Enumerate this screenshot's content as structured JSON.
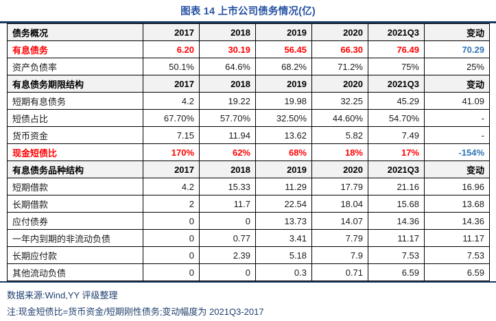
{
  "title": "图表 14 上市公司债务情况(亿)",
  "colors": {
    "title_blue": "#2853A3",
    "highlight_red": "#FF0000",
    "change_blue": "#2E75B6",
    "footer_navy": "#1F3F6E",
    "rule_navy": "#17375E",
    "section_bg": "#F2F2F2"
  },
  "table": {
    "sections": [
      {
        "header": {
          "label": "债务概况",
          "columns": [
            "2017",
            "2018",
            "2019",
            "2020",
            "2021Q3",
            "变动"
          ]
        },
        "rows": [
          {
            "label": "有息债务",
            "values": [
              "6.20",
              "30.19",
              "56.45",
              "66.30",
              "76.49",
              "70.29"
            ],
            "style": "highlight"
          },
          {
            "label": "资产负债率",
            "values": [
              "50.1%",
              "64.6%",
              "68.2%",
              "71.2%",
              "75%",
              "25%"
            ],
            "style": "normal"
          }
        ]
      },
      {
        "header": {
          "label": "有息债务期限结构",
          "columns": [
            "2017",
            "2018",
            "2019",
            "2020",
            "2021Q3",
            "变动"
          ]
        },
        "rows": [
          {
            "label": "短期有息债务",
            "values": [
              "4.2",
              "19.22",
              "19.98",
              "32.25",
              "45.29",
              "41.09"
            ],
            "style": "normal"
          },
          {
            "label": "短债占比",
            "values": [
              "67.70%",
              "57.70%",
              "32.50%",
              "44.60%",
              "54.70%",
              "-"
            ],
            "style": "normal"
          },
          {
            "label": "货币资金",
            "values": [
              "7.15",
              "11.94",
              "13.62",
              "5.82",
              "7.49",
              "-"
            ],
            "style": "normal"
          },
          {
            "label": "现金短债比",
            "values": [
              "170%",
              "62%",
              "68%",
              "18%",
              "17%",
              "-154%"
            ],
            "style": "highlight"
          }
        ]
      },
      {
        "header": {
          "label": "有息债务品种结构",
          "columns": [
            "2017",
            "2018",
            "2019",
            "2020",
            "2021Q3",
            "变动"
          ]
        },
        "rows": [
          {
            "label": "短期借款",
            "values": [
              "4.2",
              "15.33",
              "11.29",
              "17.79",
              "21.16",
              "16.96"
            ],
            "style": "normal"
          },
          {
            "label": "长期借款",
            "values": [
              "2",
              "11.7",
              "22.54",
              "18.04",
              "15.68",
              "13.68"
            ],
            "style": "normal"
          },
          {
            "label": "应付债券",
            "values": [
              "0",
              "0",
              "13.73",
              "14.07",
              "14.36",
              "14.36"
            ],
            "style": "normal"
          },
          {
            "label": "一年内到期的非流动负债",
            "values": [
              "0",
              "0.77",
              "3.41",
              "7.79",
              "11.17",
              "11.17"
            ],
            "style": "normal"
          },
          {
            "label": "长期应付款",
            "values": [
              "0",
              "2.39",
              "5.18",
              "7.9",
              "7.53",
              "7.53"
            ],
            "style": "normal"
          },
          {
            "label": "其他流动负债",
            "values": [
              "0",
              "0",
              "0.3",
              "0.71",
              "6.59",
              "6.59"
            ],
            "style": "normal"
          }
        ]
      }
    ]
  },
  "footer": {
    "source": "数据来源:Wind,YY 评级整理",
    "note": "注:现金短债比=货币资金/短期刚性债务;变动幅度为 2021Q3-2017"
  }
}
